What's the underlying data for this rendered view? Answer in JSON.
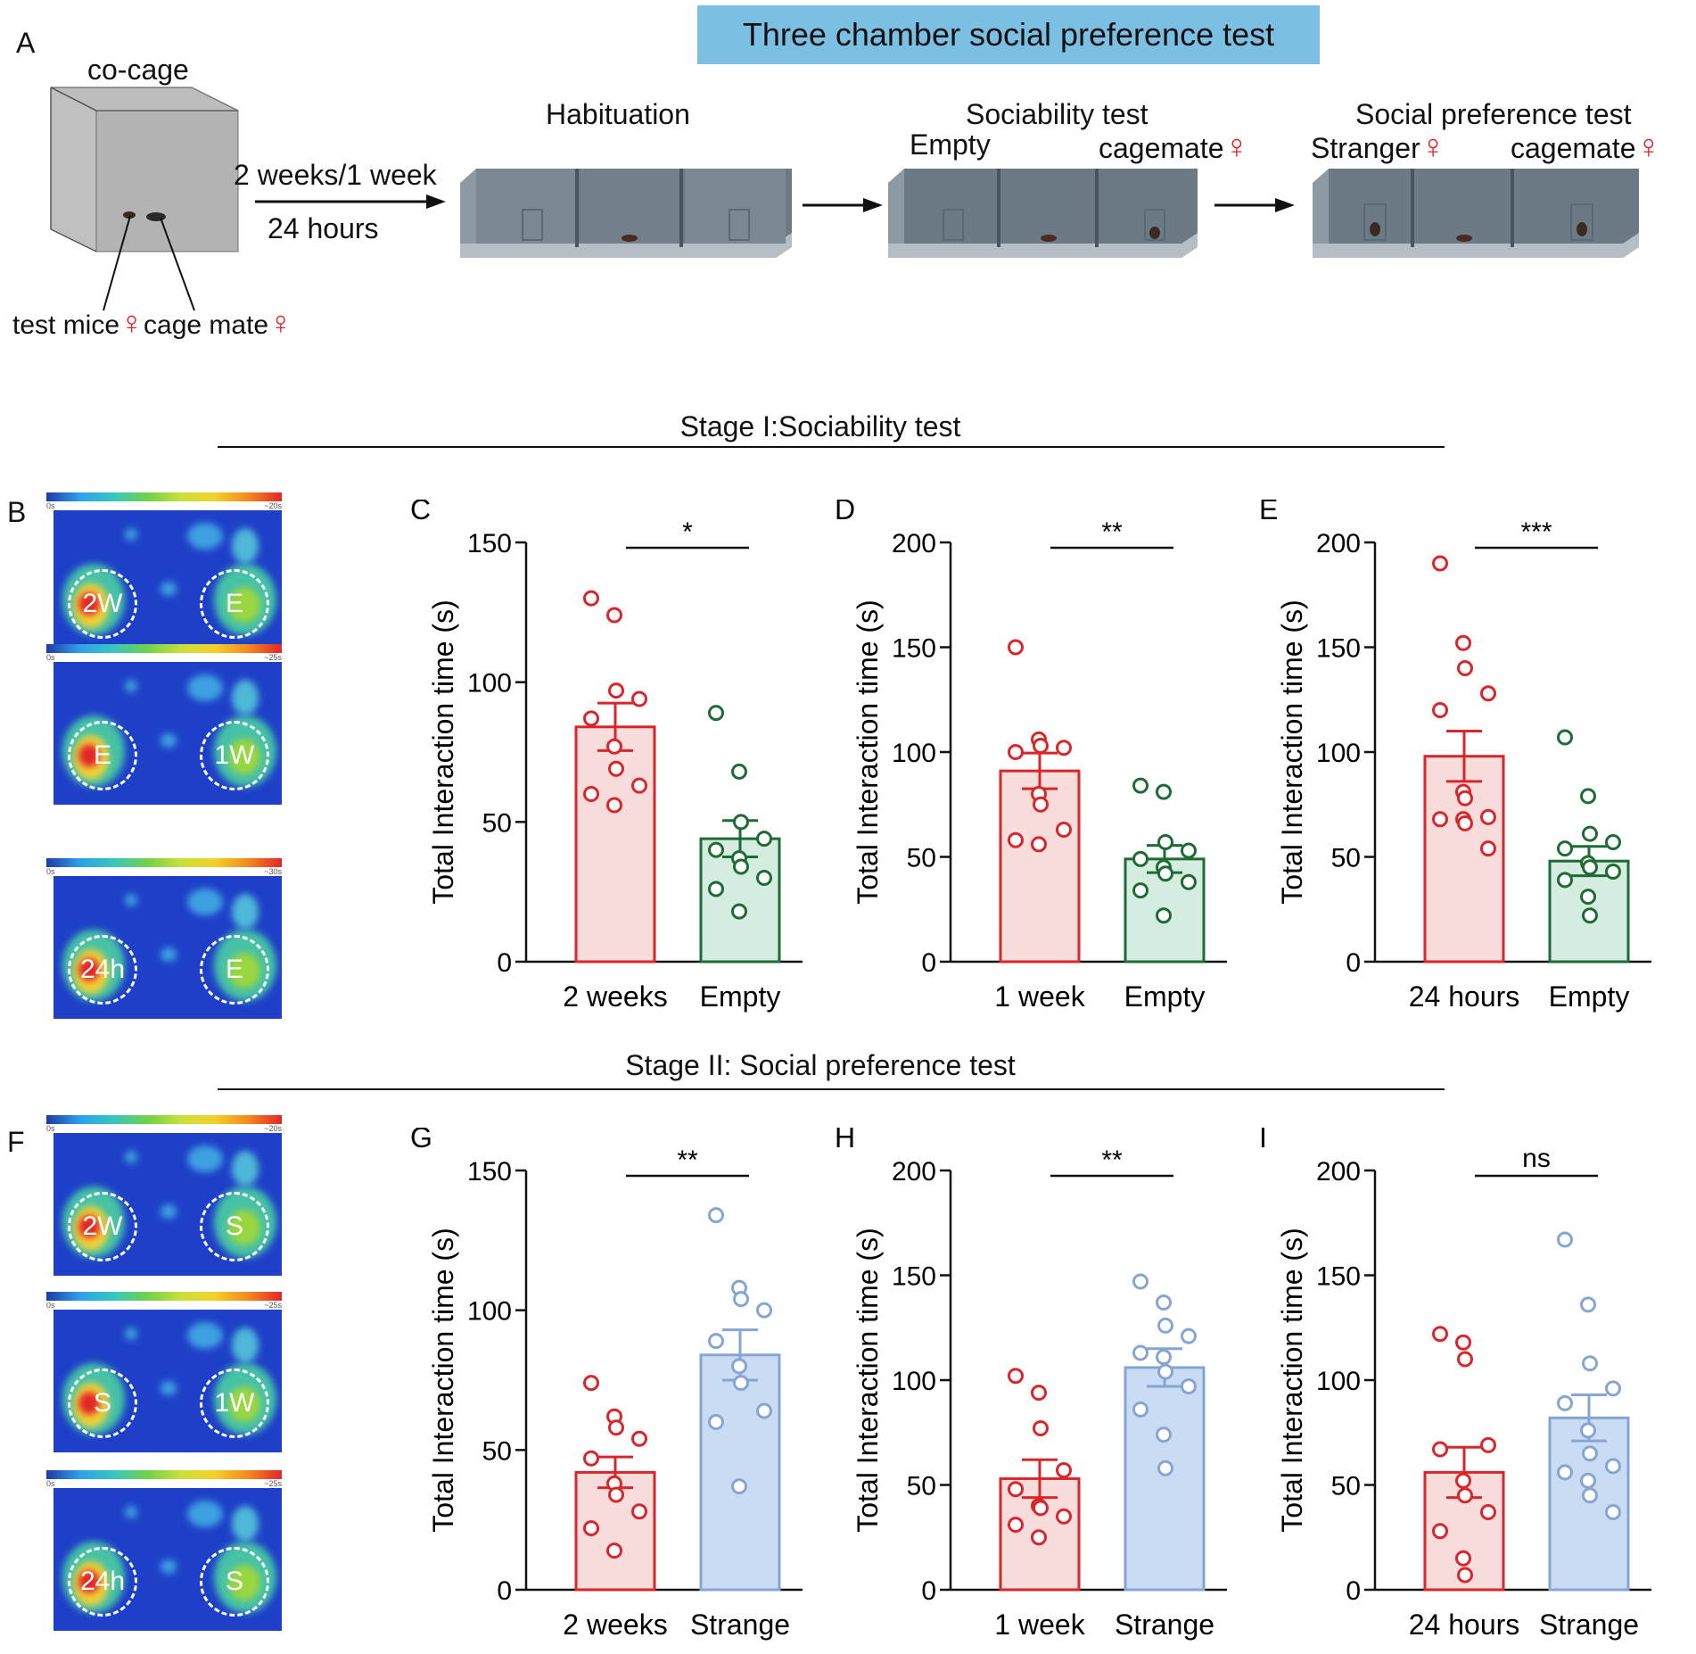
{
  "panel_a": {
    "letter": "A",
    "banner": "Three chamber social preference test",
    "cocage_label": "co-cage",
    "arrow_top": "2 weeks/1 week",
    "arrow_bottom": "24 hours",
    "test_mice": "test mice",
    "cage_mate": "cage mate",
    "female_symbol": "♀",
    "habituation": "Habituation",
    "sociability_title": "Sociability test",
    "sociability_left": "Empty",
    "sociability_right": "cagemate",
    "preference_title": "Social preference test",
    "preference_left": "Stranger",
    "preference_right": "cagemate"
  },
  "stage1": {
    "title": "Stage I:Sociability test"
  },
  "stage2": {
    "title": "Stage II:  Social preference test"
  },
  "heatmaps_b": {
    "letter": "B",
    "maps": [
      {
        "left": "2W",
        "right": "E",
        "scale_min": "0s",
        "scale_max": "~20s"
      },
      {
        "left": "E",
        "right": "1W",
        "scale_min": "0s",
        "scale_max": "~25s"
      },
      {
        "left": "24h",
        "right": "E",
        "scale_min": "0s",
        "scale_max": "~30s"
      }
    ]
  },
  "heatmaps_f": {
    "letter": "F",
    "maps": [
      {
        "left": "2W",
        "right": "S",
        "scale_min": "0s",
        "scale_max": "~20s"
      },
      {
        "left": "S",
        "right": "1W",
        "scale_min": "0s",
        "scale_max": "~25s"
      },
      {
        "left": "24h",
        "right": "S",
        "scale_min": "0s",
        "scale_max": "~25s"
      }
    ]
  },
  "colors": {
    "red": "#d9262b",
    "red_fill": "#f9dcdc",
    "green": "#1f6b35",
    "green_fill": "#d5ece0",
    "blue": "#86a6d2",
    "blue_fill": "#c9dcf3"
  },
  "chart_data": [
    {
      "id": "C",
      "type": "bar",
      "ylabel": "Total Interaction time (s)",
      "ylim": [
        0,
        150
      ],
      "yticks": [
        0,
        50,
        100,
        150
      ],
      "categories": [
        "2 weeks",
        "Empty"
      ],
      "sig": "*",
      "colors": [
        "red",
        "green"
      ],
      "means": [
        84,
        44
      ],
      "sem": [
        8.5,
        6.5
      ],
      "points": [
        [
          130,
          124,
          97,
          94,
          87,
          77,
          69,
          63,
          60,
          56
        ],
        [
          89,
          68,
          50,
          44,
          40,
          37,
          34,
          30,
          26,
          18
        ]
      ]
    },
    {
      "id": "D",
      "type": "bar",
      "ylabel": "Total Interaction time (s)",
      "ylim": [
        0,
        200
      ],
      "yticks": [
        0,
        50,
        100,
        150,
        200
      ],
      "categories": [
        "1 week",
        "Empty"
      ],
      "sig": "**",
      "colors": [
        "red",
        "green"
      ],
      "means": [
        91,
        49
      ],
      "sem": [
        8.5,
        6.5
      ],
      "points": [
        [
          150,
          106,
          103,
          102,
          100,
          80,
          75,
          63,
          58,
          56
        ],
        [
          84,
          81,
          57,
          53,
          49,
          45,
          42,
          38,
          34,
          22
        ]
      ]
    },
    {
      "id": "E",
      "type": "bar",
      "ylabel": "Total Interaction time (s)",
      "ylim": [
        0,
        200
      ],
      "yticks": [
        0,
        50,
        100,
        150,
        200
      ],
      "categories": [
        "24 hours",
        "Empty"
      ],
      "sig": "***",
      "colors": [
        "red",
        "green"
      ],
      "means": [
        98,
        48
      ],
      "sem": [
        12,
        7
      ],
      "points": [
        [
          190,
          152,
          140,
          128,
          120,
          81,
          78,
          69,
          68,
          68,
          66,
          54
        ],
        [
          107,
          79,
          61,
          57,
          54,
          47,
          45,
          43,
          39,
          31,
          22
        ]
      ]
    },
    {
      "id": "G",
      "type": "bar",
      "ylabel": "Total Interaction time (s)",
      "ylim": [
        0,
        150
      ],
      "yticks": [
        0,
        50,
        100,
        150
      ],
      "categories": [
        "2 weeks",
        "Strange"
      ],
      "sig": "**",
      "colors": [
        "red",
        "blue"
      ],
      "means": [
        42,
        84
      ],
      "sem": [
        5.5,
        9
      ],
      "points": [
        [
          74,
          62,
          58,
          54,
          47,
          38,
          34,
          28,
          22,
          14
        ],
        [
          134,
          108,
          104,
          100,
          89,
          80,
          74,
          64,
          60,
          37
        ]
      ]
    },
    {
      "id": "H",
      "type": "bar",
      "ylabel": "Total Interaction time (s)",
      "ylim": [
        0,
        200
      ],
      "yticks": [
        0,
        50,
        100,
        150,
        200
      ],
      "categories": [
        "1 week",
        "Strange"
      ],
      "sig": "**",
      "colors": [
        "red",
        "blue"
      ],
      "means": [
        53,
        106
      ],
      "sem": [
        9,
        9
      ],
      "points": [
        [
          102,
          94,
          77,
          57,
          48,
          40,
          39,
          35,
          31,
          25
        ],
        [
          147,
          137,
          126,
          121,
          113,
          111,
          104,
          97,
          86,
          74,
          58
        ]
      ]
    },
    {
      "id": "I",
      "type": "bar",
      "ylabel": "Total Interaction time (s)",
      "ylim": [
        0,
        200
      ],
      "yticks": [
        0,
        50,
        100,
        150,
        200
      ],
      "categories": [
        "24 hours",
        "Strange"
      ],
      "sig": "ns",
      "colors": [
        "red",
        "blue"
      ],
      "means": [
        56,
        82
      ],
      "sem": [
        12,
        11
      ],
      "points": [
        [
          122,
          118,
          110,
          69,
          67,
          52,
          45,
          37,
          28,
          15,
          7
        ],
        [
          167,
          136,
          108,
          96,
          89,
          76,
          65,
          59,
          56,
          52,
          45,
          37
        ]
      ]
    }
  ]
}
